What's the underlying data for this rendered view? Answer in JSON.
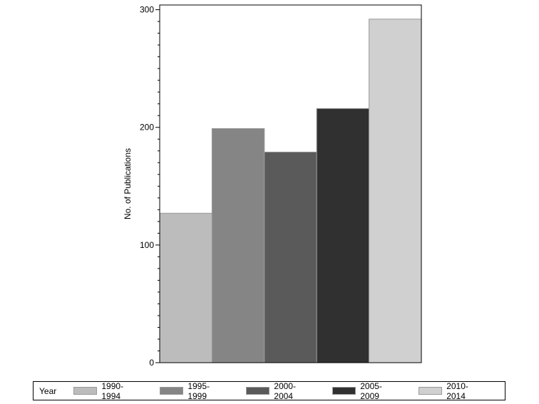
{
  "chart_data": {
    "type": "bar",
    "ylabel": "No. of Publications",
    "xlabel": "",
    "ylim": [
      0,
      304
    ],
    "yticks": [
      0,
      100,
      200,
      300
    ],
    "minor_tick_step": 10,
    "legend_title": "Year",
    "legend_position": "bottom",
    "categories": [
      "1990-1994",
      "1995-1999",
      "2000-2004",
      "2005-2009",
      "2010-2014"
    ],
    "values": [
      127,
      199,
      179,
      216,
      292
    ],
    "colors": [
      "#bcbcbc",
      "#858585",
      "#5a5a5a",
      "#303030",
      "#d0d0d0"
    ]
  }
}
